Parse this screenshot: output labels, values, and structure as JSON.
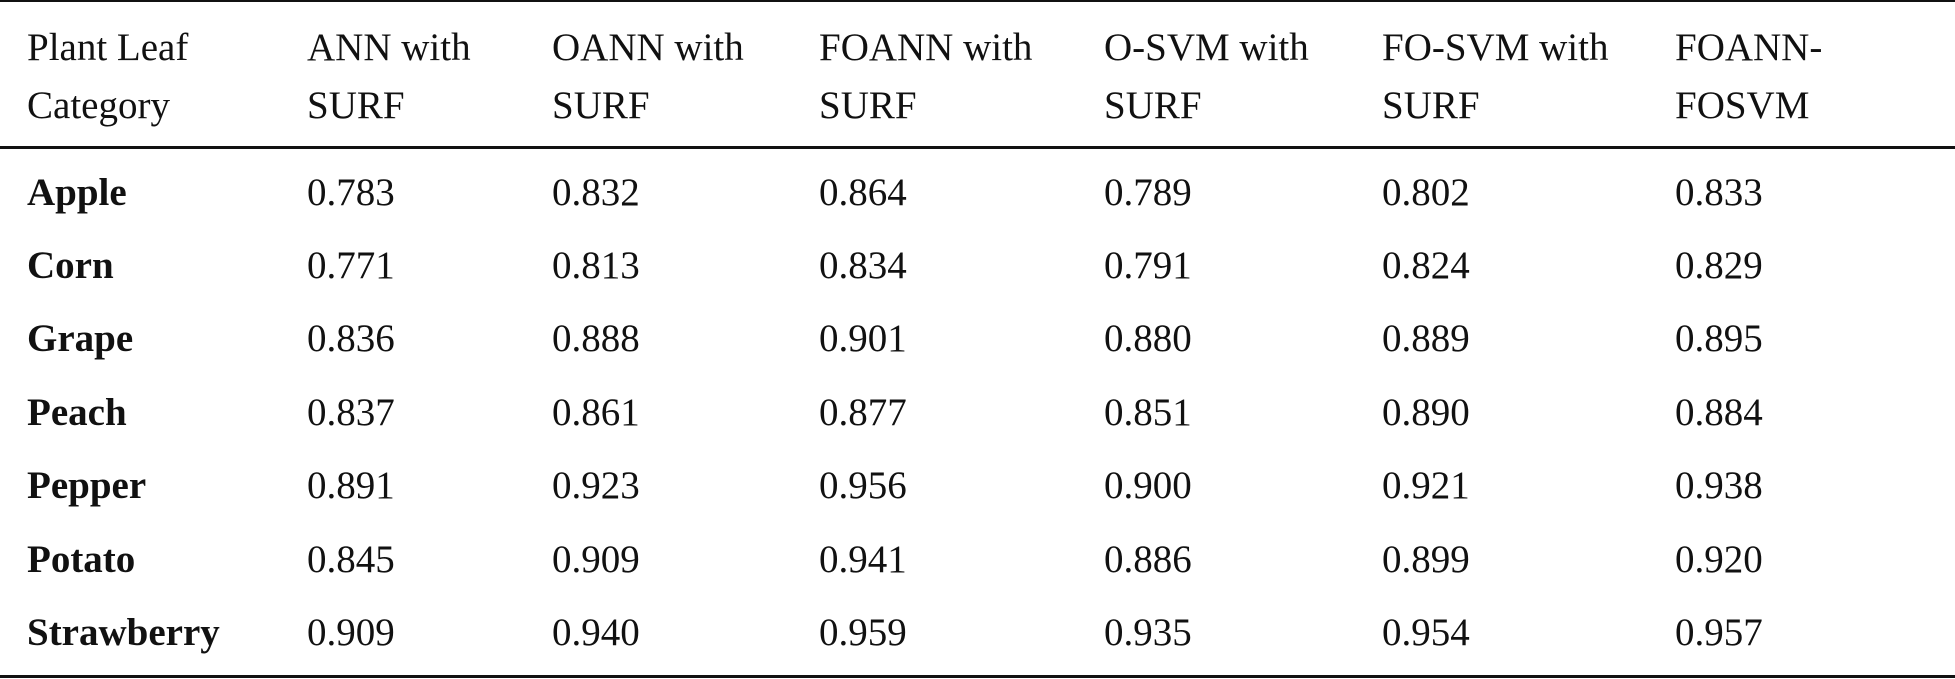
{
  "table": {
    "header": [
      [
        "Plant Leaf",
        "Category"
      ],
      [
        "ANN with",
        "SURF"
      ],
      [
        "OANN with",
        "SURF"
      ],
      [
        "FOANN with",
        "SURF"
      ],
      [
        "O-SVM with",
        "SURF"
      ],
      [
        "FO-SVM with",
        "SURF"
      ],
      [
        "FOANN-",
        "FOSVM"
      ]
    ],
    "rows": [
      [
        "Apple",
        "0.783",
        "0.832",
        "0.864",
        "0.789",
        "0.802",
        "0.833"
      ],
      [
        "Corn",
        "0.771",
        "0.813",
        "0.834",
        "0.791",
        "0.824",
        "0.829"
      ],
      [
        "Grape",
        "0.836",
        "0.888",
        "0.901",
        "0.880",
        "0.889",
        "0.895"
      ],
      [
        "Peach",
        "0.837",
        "0.861",
        "0.877",
        "0.851",
        "0.890",
        "0.884"
      ],
      [
        "Pepper",
        "0.891",
        "0.923",
        "0.956",
        "0.900",
        "0.921",
        "0.938"
      ],
      [
        "Potato",
        "0.845",
        "0.909",
        "0.941",
        "0.886",
        "0.899",
        "0.920"
      ],
      [
        "Strawberry",
        "0.909",
        "0.940",
        "0.959",
        "0.935",
        "0.954",
        "0.957"
      ]
    ]
  }
}
